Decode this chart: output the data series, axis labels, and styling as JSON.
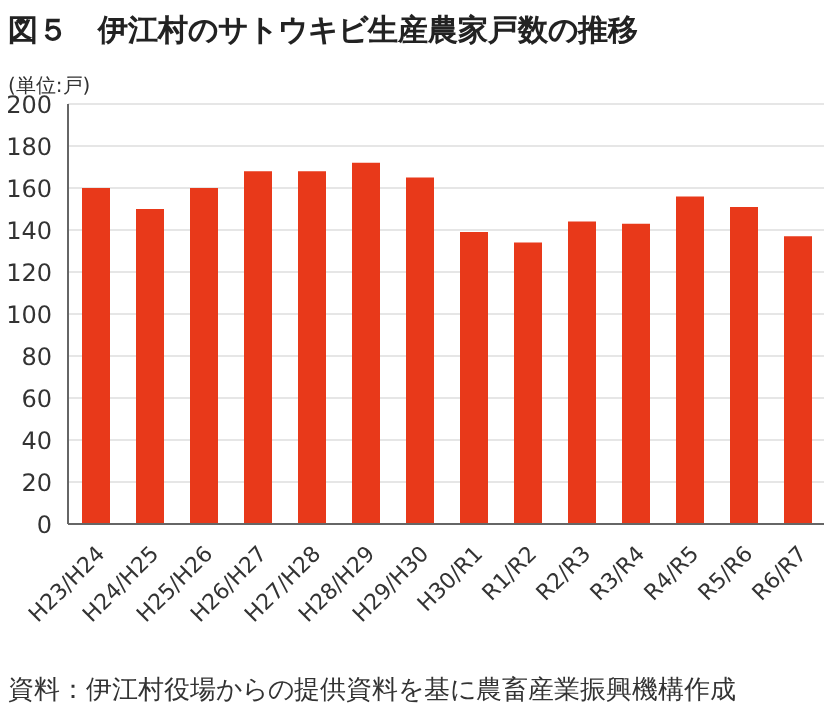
{
  "chart_data": {
    "type": "bar",
    "title": "図５　伊江村のサトウキビ生産農家戸数の推移",
    "ylabel": "(単位:戸)",
    "categories": [
      "H23/H24",
      "H24/H25",
      "H25/H26",
      "H26/H27",
      "H27/H28",
      "H28/H29",
      "H29/H30",
      "H30/R1",
      "R1/R2",
      "R2/R3",
      "R3/R4",
      "R4/R5",
      "R5/R6",
      "R6/R7"
    ],
    "values": [
      160,
      150,
      160,
      168,
      168,
      172,
      165,
      139,
      134,
      144,
      143,
      156,
      151,
      137
    ],
    "color": "#e8391a",
    "ylim": [
      0,
      200
    ],
    "yticks": [
      0,
      20,
      40,
      60,
      80,
      100,
      120,
      140,
      160,
      180,
      200
    ],
    "grid": "y",
    "annotations": [
      "資料：伊江村役場からの提供資料を基に農畜産業振興機構作成"
    ]
  }
}
